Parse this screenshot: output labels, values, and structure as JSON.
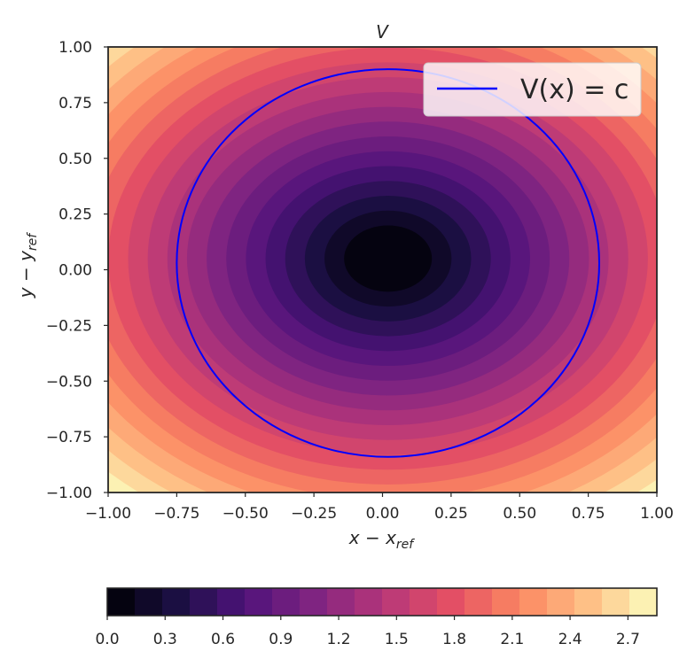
{
  "chart_data": {
    "type": "heatmap",
    "title": "V",
    "xlabel": {
      "main": "x − x",
      "sub": "ref"
    },
    "ylabel": {
      "main": "y − y",
      "sub": "ref"
    },
    "xlim": [
      -1.0,
      1.0
    ],
    "ylim": [
      -1.0,
      1.0
    ],
    "x_ticks": [
      "−1.00",
      "−0.75",
      "−0.50",
      "−0.25",
      "0.00",
      "0.25",
      "0.50",
      "0.75",
      "1.00"
    ],
    "y_ticks": [
      "1.00",
      "0.75",
      "0.50",
      "0.25",
      "0.00",
      "−0.25",
      "−0.50",
      "−0.75",
      "−1.00"
    ],
    "field": {
      "center": [
        0.02,
        0.05
      ],
      "levels": 20,
      "vmin": 0.0,
      "vmax": 2.85
    },
    "contour": {
      "label": "V(x) = c",
      "color": "#0000ff",
      "center": [
        0.02,
        0.03
      ],
      "radius_x": 0.77,
      "radius_y": 0.87
    },
    "legend": {
      "placement": "top-right",
      "entries": [
        "V(x) = c"
      ]
    },
    "colorbar": {
      "orientation": "horizontal",
      "colormap": "magma",
      "min": 0.0,
      "max": 2.85,
      "ticks": [
        "0.0",
        "0.3",
        "0.6",
        "0.9",
        "1.2",
        "1.5",
        "1.8",
        "2.1",
        "2.4",
        "2.7"
      ]
    }
  }
}
